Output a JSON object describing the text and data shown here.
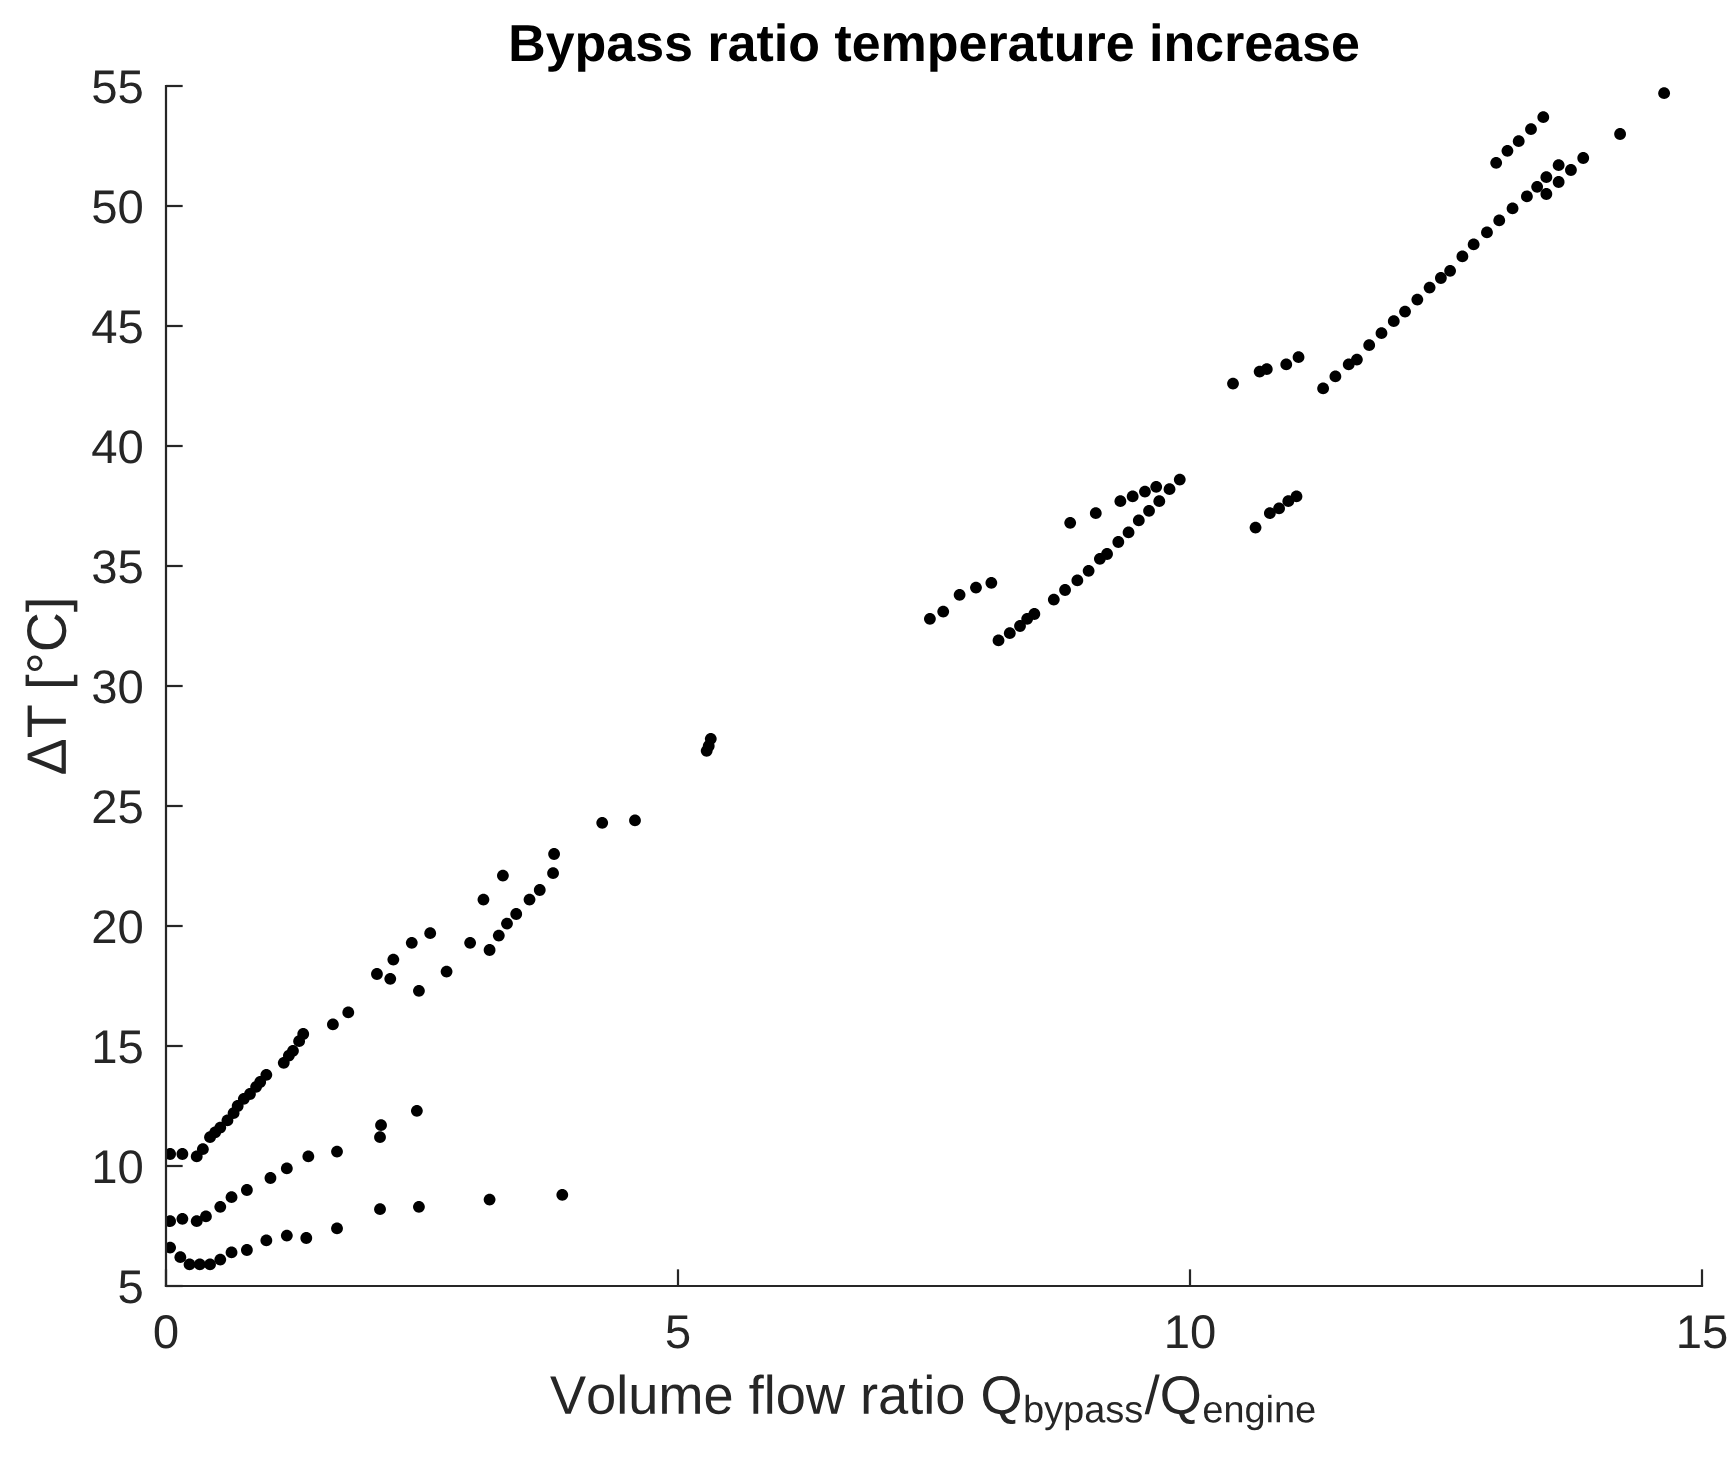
{
  "chart_data": {
    "type": "scatter",
    "title": "Bypass ratio temperature increase",
    "xlabel": "Volume flow ratio Q$_{bypass}$/Q$_{engine}$",
    "ylabel": "ΔT [°C]",
    "xlim": [
      0,
      15
    ],
    "xticks": [
      0,
      5,
      10,
      15
    ],
    "ylim": [
      5,
      55
    ],
    "yticks": [
      5,
      10,
      15,
      20,
      25,
      30,
      35,
      40,
      45,
      50,
      55
    ],
    "marker": "circle",
    "x": [
      0.04,
      0.14,
      0.23,
      0.33,
      0.43,
      0.53,
      0.64,
      0.79,
      0.98,
      1.18,
      1.37,
      1.67,
      2.09,
      2.47,
      3.16,
      3.87,
      0.04,
      0.16,
      0.3,
      0.39,
      0.53,
      0.64,
      0.79,
      1.02,
      1.18,
      1.39,
      1.67,
      2.09,
      2.1,
      2.45,
      0.04,
      0.16,
      0.3,
      0.36,
      0.43,
      0.48,
      0.53,
      0.6,
      0.66,
      0.7,
      0.76,
      0.82,
      0.88,
      0.92,
      0.98,
      1.15,
      1.2,
      1.24,
      1.3,
      1.34,
      1.63,
      1.78,
      2.06,
      2.19,
      2.22,
      2.4,
      2.47,
      2.58,
      2.74,
      2.97,
      3.1,
      3.29,
      3.16,
      3.25,
      3.33,
      3.42,
      3.55,
      3.65,
      3.78,
      3.79,
      4.26,
      4.58,
      5.28,
      5.3,
      5.32,
      7.46,
      7.59,
      7.75,
      7.91,
      8.06,
      8.13,
      8.24,
      8.34,
      8.41,
      8.48,
      8.67,
      8.78,
      8.9,
      9.01,
      9.12,
      9.19,
      9.3,
      9.4,
      9.5,
      9.6,
      9.7,
      9.8,
      9.9,
      9.32,
      9.44,
      9.56,
      9.67,
      8.83,
      9.08,
      10.64,
      10.78,
      10.87,
      10.96,
      11.04,
      10.42,
      10.68,
      10.75,
      10.94,
      11.06,
      11.3,
      11.42,
      11.55,
      11.63,
      11.75,
      11.87,
      11.99,
      12.1,
      12.22,
      12.34,
      12.45,
      12.54,
      12.66,
      12.77,
      12.9,
      13.02,
      13.15,
      13.29,
      13.39,
      13.48,
      13.6,
      13.48,
      13.6,
      13.72,
      13.84,
      12.99,
      13.1,
      13.21,
      13.33,
      13.45,
      14.2,
      14.63
    ],
    "series": [
      {
        "color": "#000000",
        "values": [
          6.6,
          6.2,
          5.9,
          5.9,
          5.9,
          6.1,
          6.4,
          6.5,
          6.9,
          7.1,
          7.0,
          7.4,
          8.2,
          8.3,
          8.6,
          8.8,
          7.7,
          7.8,
          7.7,
          7.9,
          8.3,
          8.7,
          9.0,
          9.5,
          9.9,
          10.4,
          10.6,
          11.2,
          11.7,
          12.3,
          10.5,
          10.5,
          10.4,
          10.7,
          11.2,
          11.4,
          11.6,
          11.9,
          12.2,
          12.5,
          12.8,
          13.0,
          13.3,
          13.5,
          13.8,
          14.3,
          14.6,
          14.8,
          15.2,
          15.5,
          15.9,
          16.4,
          18.0,
          17.8,
          18.6,
          19.3,
          17.3,
          19.7,
          18.1,
          19.3,
          21.1,
          22.1,
          19.0,
          19.6,
          20.1,
          20.5,
          21.1,
          21.5,
          22.2,
          23.0,
          24.3,
          24.4,
          27.3,
          27.5,
          27.8,
          32.8,
          33.1,
          33.8,
          34.1,
          34.3,
          31.9,
          32.2,
          32.5,
          32.8,
          33.0,
          33.6,
          34.0,
          34.4,
          34.8,
          35.3,
          35.5,
          36.0,
          36.4,
          36.9,
          37.3,
          37.7,
          38.2,
          38.6,
          37.7,
          37.9,
          38.1,
          38.3,
          36.8,
          37.2,
          36.6,
          37.2,
          37.4,
          37.7,
          37.9,
          42.6,
          43.1,
          43.2,
          43.4,
          43.7,
          42.4,
          42.9,
          43.4,
          43.6,
          44.2,
          44.7,
          45.2,
          45.6,
          46.1,
          46.6,
          47.0,
          47.3,
          47.9,
          48.4,
          48.9,
          49.4,
          49.9,
          50.4,
          50.8,
          51.2,
          51.7,
          50.5,
          51.0,
          51.5,
          52.0,
          51.8,
          52.3,
          52.7,
          53.2,
          53.7,
          53.0,
          54.7
        ]
      }
    ]
  }
}
